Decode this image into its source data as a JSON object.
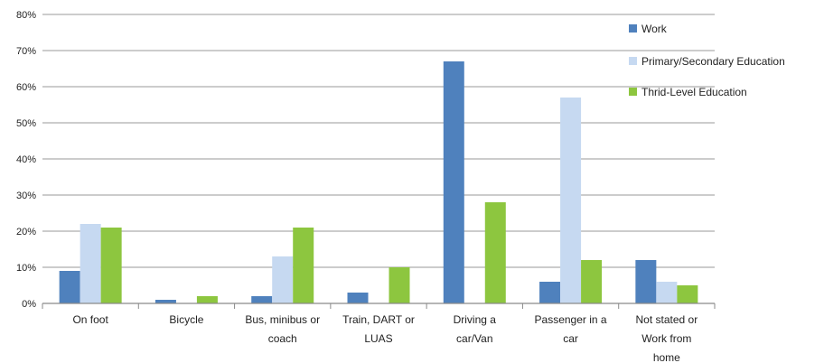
{
  "chart_data": {
    "type": "bar",
    "categories": [
      [
        "On foot"
      ],
      [
        "Bicycle"
      ],
      [
        "Bus, minibus or",
        "coach"
      ],
      [
        "Train, DART or",
        "LUAS"
      ],
      [
        "Driving a",
        "car/Van"
      ],
      [
        "Passenger in a",
        "car"
      ],
      [
        "Not stated or",
        "Work from",
        "home"
      ]
    ],
    "series": [
      {
        "name": "Work",
        "color": "#4f81bd",
        "values": [
          9,
          1,
          2,
          3,
          67,
          6,
          12
        ]
      },
      {
        "name": "Primary/Secondary Education",
        "color": "#c6d9f1",
        "values": [
          22,
          0,
          13,
          0,
          0,
          57,
          6
        ]
      },
      {
        "name": "Thrid-Level Education",
        "color": "#8dc63f",
        "values": [
          21,
          2,
          21,
          10,
          28,
          12,
          5
        ]
      }
    ],
    "yticks": [
      "0%",
      "10%",
      "20%",
      "30%",
      "40%",
      "50%",
      "60%",
      "70%",
      "80%"
    ],
    "ylim": [
      0,
      80
    ],
    "grid": true,
    "legend_position": "right"
  }
}
